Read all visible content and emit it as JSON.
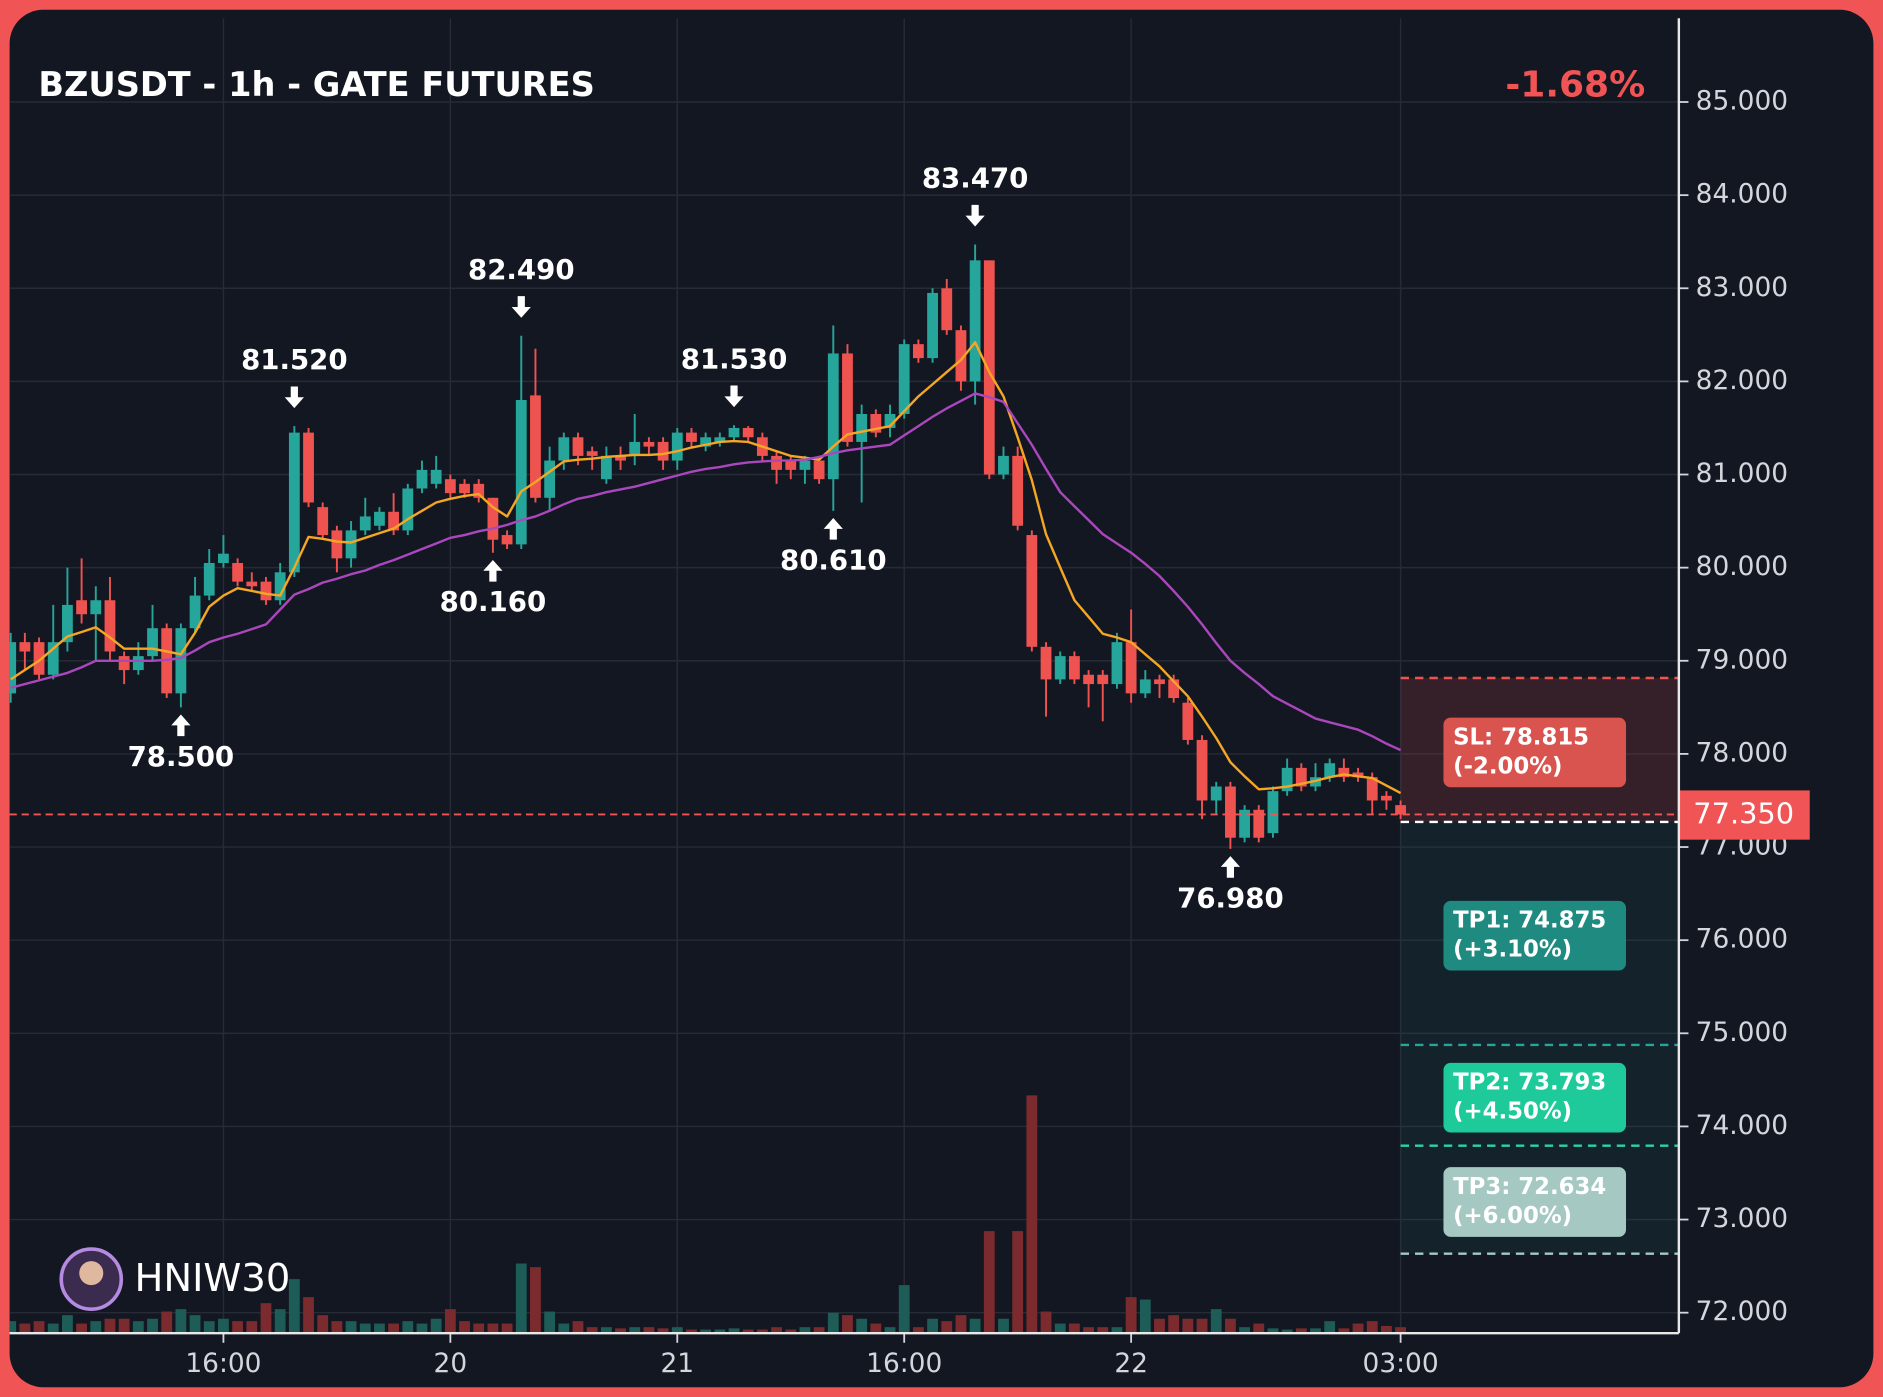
{
  "chart_data": {
    "type": "candlestick",
    "title": "BZUSDT - 1h - GATE FUTURES",
    "change_label": "-1.68%",
    "watermark": "HNIW30",
    "categories": [
      null,
      null,
      null,
      null,
      null,
      null,
      null,
      null,
      null,
      null,
      null,
      null,
      null,
      null,
      null,
      "16:00",
      null,
      null,
      null,
      null,
      null,
      null,
      null,
      null,
      null,
      null,
      null,
      null,
      null,
      null,
      null,
      "20",
      null,
      null,
      null,
      null,
      null,
      null,
      null,
      null,
      null,
      null,
      null,
      null,
      null,
      null,
      null,
      "21",
      null,
      null,
      null,
      null,
      null,
      null,
      null,
      null,
      null,
      null,
      null,
      null,
      null,
      null,
      null,
      "16:00",
      null,
      null,
      null,
      null,
      null,
      null,
      null,
      null,
      null,
      null,
      null,
      null,
      null,
      null,
      null,
      "22",
      null,
      null,
      null,
      null,
      null,
      null,
      null,
      null,
      null,
      null,
      null,
      null,
      null,
      null,
      null,
      null,
      null,
      null,
      "03:00"
    ],
    "open": [
      78.65,
      79.2,
      79.2,
      78.85,
      79.2,
      79.65,
      79.5,
      79.65,
      79.05,
      78.9,
      79.05,
      79.35,
      78.65,
      79.35,
      79.7,
      80.05,
      80.05,
      79.85,
      79.85,
      79.65,
      79.95,
      81.45,
      80.65,
      80.4,
      80.1,
      80.4,
      80.45,
      80.6,
      80.4,
      80.85,
      80.9,
      80.95,
      80.9,
      80.9,
      80.75,
      80.35,
      80.25,
      81.85,
      80.75,
      81.15,
      81.4,
      81.25,
      80.95,
      81.2,
      81.2,
      81.35,
      81.35,
      81.15,
      81.45,
      81.3,
      81.35,
      81.4,
      81.5,
      81.4,
      81.2,
      81.15,
      81.05,
      81.15,
      80.95,
      82.3,
      81.35,
      81.65,
      81.5,
      81.65,
      82.4,
      82.25,
      83.0,
      82.55,
      82.0,
      83.3,
      81.0,
      81.2,
      80.35,
      79.15,
      78.8,
      79.05,
      78.85,
      78.85,
      78.75,
      79.2,
      78.65,
      78.8,
      78.8,
      78.55,
      78.15,
      77.5,
      77.65,
      77.1,
      77.4,
      77.15,
      77.6,
      77.85,
      77.65,
      77.75,
      77.85,
      77.8,
      77.75,
      77.55,
      77.45
    ],
    "high": [
      79.3,
      79.3,
      79.25,
      79.6,
      80.0,
      80.1,
      79.8,
      79.9,
      79.1,
      79.2,
      79.6,
      79.4,
      79.4,
      79.9,
      80.2,
      80.35,
      80.1,
      79.95,
      79.9,
      80.05,
      81.52,
      81.5,
      80.7,
      80.45,
      80.5,
      80.75,
      80.65,
      80.8,
      80.9,
      81.15,
      81.2,
      81.0,
      80.95,
      80.95,
      80.75,
      80.4,
      82.49,
      82.35,
      81.3,
      81.45,
      81.45,
      81.3,
      81.3,
      81.3,
      81.65,
      81.4,
      81.4,
      81.5,
      81.5,
      81.45,
      81.45,
      81.53,
      81.52,
      81.45,
      81.25,
      81.2,
      81.2,
      81.2,
      82.6,
      82.4,
      81.75,
      81.7,
      81.75,
      82.45,
      82.45,
      83.0,
      83.1,
      82.6,
      83.47,
      83.3,
      81.3,
      81.3,
      80.4,
      79.2,
      79.1,
      79.1,
      78.9,
      78.9,
      79.3,
      79.55,
      78.9,
      78.85,
      78.85,
      78.6,
      78.2,
      77.7,
      77.7,
      77.45,
      77.45,
      77.65,
      77.95,
      77.9,
      77.9,
      77.95,
      77.95,
      77.85,
      77.8,
      77.6,
      77.5
    ],
    "low": [
      78.55,
      78.9,
      78.8,
      78.8,
      79.1,
      79.4,
      79.0,
      79.0,
      78.75,
      78.85,
      79.0,
      78.6,
      78.5,
      79.3,
      79.65,
      80.0,
      79.8,
      79.75,
      79.6,
      79.6,
      79.9,
      80.65,
      80.3,
      79.95,
      80.0,
      80.35,
      80.4,
      80.35,
      80.35,
      80.8,
      80.85,
      80.75,
      80.75,
      80.7,
      80.16,
      80.2,
      80.2,
      80.7,
      80.6,
      81.05,
      81.1,
      81.05,
      80.9,
      81.05,
      81.1,
      81.2,
      81.05,
      81.05,
      81.3,
      81.25,
      81.3,
      81.35,
      81.35,
      81.15,
      80.9,
      80.95,
      80.9,
      80.9,
      80.61,
      81.3,
      80.7,
      81.4,
      81.4,
      81.6,
      82.2,
      82.2,
      82.5,
      81.9,
      81.75,
      80.95,
      80.95,
      80.4,
      79.1,
      78.4,
      78.75,
      78.75,
      78.5,
      78.35,
      78.7,
      78.55,
      78.6,
      78.6,
      78.55,
      78.1,
      77.3,
      77.35,
      76.98,
      77.05,
      77.05,
      77.1,
      77.55,
      77.6,
      77.6,
      77.7,
      77.7,
      77.7,
      77.35,
      77.4,
      77.3
    ],
    "close": [
      79.2,
      79.1,
      78.85,
      79.2,
      79.6,
      79.5,
      79.65,
      79.1,
      78.9,
      79.05,
      79.35,
      78.65,
      79.35,
      79.7,
      80.05,
      80.15,
      79.85,
      79.8,
      79.65,
      79.95,
      81.45,
      80.7,
      80.35,
      80.1,
      80.4,
      80.55,
      80.6,
      80.4,
      80.85,
      81.05,
      81.05,
      80.8,
      80.8,
      80.75,
      80.3,
      80.25,
      81.8,
      80.75,
      81.15,
      81.4,
      81.2,
      81.2,
      81.2,
      81.15,
      81.35,
      81.3,
      81.15,
      81.45,
      81.35,
      81.4,
      81.4,
      81.5,
      81.4,
      81.2,
      81.05,
      81.05,
      81.15,
      80.95,
      82.3,
      81.35,
      81.65,
      81.45,
      81.65,
      82.4,
      82.25,
      82.95,
      82.55,
      82.0,
      83.3,
      81.0,
      81.2,
      80.45,
      79.15,
      78.8,
      79.05,
      78.8,
      78.75,
      78.75,
      79.2,
      78.65,
      78.8,
      78.75,
      78.6,
      78.15,
      77.5,
      77.65,
      77.1,
      77.4,
      77.1,
      77.6,
      77.85,
      77.65,
      77.75,
      77.9,
      77.75,
      77.75,
      77.5,
      77.5,
      77.35
    ],
    "volume": [
      10,
      8,
      10,
      8,
      15,
      8,
      10,
      12,
      12,
      10,
      12,
      18,
      20,
      15,
      10,
      12,
      10,
      10,
      25,
      20,
      45,
      30,
      15,
      10,
      10,
      8,
      8,
      8,
      10,
      8,
      12,
      20,
      10,
      8,
      8,
      8,
      58,
      55,
      18,
      8,
      10,
      5,
      5,
      4,
      5,
      5,
      4,
      5,
      3,
      3,
      3,
      4,
      3,
      3,
      5,
      3,
      5,
      5,
      17,
      15,
      12,
      8,
      5,
      40,
      5,
      12,
      10,
      15,
      12,
      85,
      12,
      85,
      198,
      18,
      8,
      8,
      5,
      5,
      5,
      30,
      28,
      12,
      15,
      12,
      12,
      20,
      12,
      5,
      8,
      4,
      3,
      4,
      4,
      10,
      4,
      8,
      10,
      6,
      5
    ],
    "up_color": "#26a69a",
    "down_color": "#ef5350",
    "up_volume_color": "#1e5c57",
    "down_volume_color": "#7b2b2d",
    "lines": [
      {
        "color": "#f5a623",
        "values": [
          78.8,
          78.9,
          79.0,
          79.13,
          79.26,
          79.31,
          79.36,
          79.25,
          79.13,
          79.13,
          79.13,
          79.1,
          79.07,
          79.3,
          79.58,
          79.7,
          79.78,
          79.75,
          79.72,
          79.7,
          80.0,
          80.33,
          80.31,
          80.28,
          80.27,
          80.32,
          80.37,
          80.42,
          80.52,
          80.61,
          80.7,
          80.74,
          80.77,
          80.79,
          80.65,
          80.55,
          80.82,
          80.92,
          81.03,
          81.14,
          81.16,
          81.17,
          81.19,
          81.2,
          81.21,
          81.21,
          81.22,
          81.25,
          81.29,
          81.32,
          81.35,
          81.36,
          81.35,
          81.3,
          81.25,
          81.2,
          81.18,
          81.16,
          81.3,
          81.43,
          81.46,
          81.49,
          81.52,
          81.68,
          81.84,
          81.97,
          82.1,
          82.23,
          82.42,
          82.1,
          81.84,
          81.4,
          80.94,
          80.36,
          80.0,
          79.65,
          79.47,
          79.29,
          79.25,
          79.2,
          79.07,
          78.94,
          78.78,
          78.62,
          78.4,
          78.17,
          77.91,
          77.76,
          77.62,
          77.63,
          77.65,
          77.68,
          77.71,
          77.75,
          77.78,
          77.76,
          77.74,
          77.66,
          77.58
        ]
      },
      {
        "color": "#ab47bc",
        "values": [
          78.71,
          78.75,
          78.79,
          78.83,
          78.87,
          78.93,
          79.0,
          79.0,
          79.0,
          79.0,
          79.0,
          79.01,
          79.03,
          79.11,
          79.2,
          79.25,
          79.29,
          79.34,
          79.39,
          79.55,
          79.71,
          79.77,
          79.84,
          79.88,
          79.93,
          79.97,
          80.03,
          80.08,
          80.14,
          80.2,
          80.26,
          80.32,
          80.35,
          80.39,
          80.42,
          80.46,
          80.51,
          80.55,
          80.61,
          80.68,
          80.74,
          80.77,
          80.81,
          80.84,
          80.87,
          80.91,
          80.95,
          80.99,
          81.03,
          81.06,
          81.08,
          81.11,
          81.13,
          81.14,
          81.15,
          81.15,
          81.16,
          81.19,
          81.23,
          81.26,
          81.28,
          81.3,
          81.32,
          81.42,
          81.52,
          81.62,
          81.71,
          81.79,
          81.87,
          81.83,
          81.78,
          81.55,
          81.32,
          81.06,
          80.81,
          80.66,
          80.51,
          80.36,
          80.26,
          80.16,
          80.04,
          79.91,
          79.75,
          79.58,
          79.39,
          79.19,
          79.0,
          78.87,
          78.75,
          78.62,
          78.54,
          78.46,
          78.38,
          78.34,
          78.3,
          78.26,
          78.19,
          78.11,
          78.04
        ]
      }
    ],
    "ylim": [
      71.78,
      85.9
    ],
    "yticks": [
      {
        "value": 72,
        "label": "72.000"
      },
      {
        "value": 73,
        "label": "73.000"
      },
      {
        "value": 74,
        "label": "74.000"
      },
      {
        "value": 75,
        "label": "75.000"
      },
      {
        "value": 76,
        "label": "76.000"
      },
      {
        "value": 77,
        "label": "77.000"
      },
      {
        "value": 78,
        "label": "78.000"
      },
      {
        "value": 79,
        "label": "79.000"
      },
      {
        "value": 80,
        "label": "80.000"
      },
      {
        "value": 81,
        "label": "81.000"
      },
      {
        "value": 82,
        "label": "82.000"
      },
      {
        "value": 83,
        "label": "83.000"
      },
      {
        "value": 84,
        "label": "84.000"
      },
      {
        "value": 85,
        "label": "85.000"
      }
    ],
    "grid": true,
    "last_price": {
      "value": 77.35,
      "label": "77.350",
      "color": "#f05454"
    },
    "entry": 77.27,
    "levels": [
      {
        "value": 78.815,
        "label": "SL: 78.815",
        "note": "(-2.00%)",
        "color": "#d9534f",
        "line_color": "#ef5350"
      },
      {
        "value": 74.875,
        "label": "TP1: 74.875",
        "note": "(+3.10%)",
        "color": "#1f8a80",
        "line_color": "#26a69a"
      },
      {
        "value": 73.793,
        "label": "TP2: 73.793",
        "note": "(+4.50%)",
        "color": "#1ec99a",
        "line_color": "#2bd4a4"
      },
      {
        "value": 72.634,
        "label": "TP3: 72.634",
        "note": "(+6.00%)",
        "color": "#a5c8c2",
        "line_color": "#a5c8c2"
      }
    ],
    "annotations": [
      {
        "candle": 12,
        "side": "low",
        "value": 78.5,
        "label": "78.500"
      },
      {
        "candle": 20,
        "side": "high",
        "value": 81.52,
        "label": "81.520"
      },
      {
        "candle": 34,
        "side": "low",
        "value": 80.16,
        "label": "80.160"
      },
      {
        "candle": 36,
        "side": "high",
        "value": 82.49,
        "label": "82.490"
      },
      {
        "candle": 51,
        "side": "high",
        "value": 81.53,
        "label": "81.530"
      },
      {
        "candle": 58,
        "side": "low",
        "value": 80.61,
        "label": "80.610"
      },
      {
        "candle": 68,
        "side": "high",
        "value": 83.47,
        "label": "83.470"
      },
      {
        "candle": 86,
        "side": "low",
        "value": 76.98,
        "label": "76.980"
      }
    ]
  }
}
